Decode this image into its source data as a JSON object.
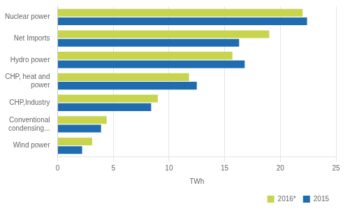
{
  "chart_data": {
    "type": "bar",
    "orientation": "horizontal",
    "categories": [
      "Nuclear power",
      "Net Imports",
      "Hydro power",
      "CHP, heat and\npower",
      "CHP,Industry",
      "Conventional\ncondensing...",
      "Wind power"
    ],
    "series": [
      {
        "name": "2016*",
        "color": "#c8d44e",
        "values": [
          22.0,
          19.0,
          15.7,
          11.8,
          9.0,
          4.4,
          3.1
        ]
      },
      {
        "name": "2015",
        "color": "#1f6cb0",
        "values": [
          22.4,
          16.3,
          16.8,
          12.5,
          8.4,
          3.9,
          2.2
        ]
      }
    ],
    "xlabel": "TWh",
    "xlim": [
      0,
      25
    ],
    "xticks": [
      0,
      5,
      10,
      15,
      20,
      25
    ],
    "grid": true,
    "legend": "lower right"
  }
}
